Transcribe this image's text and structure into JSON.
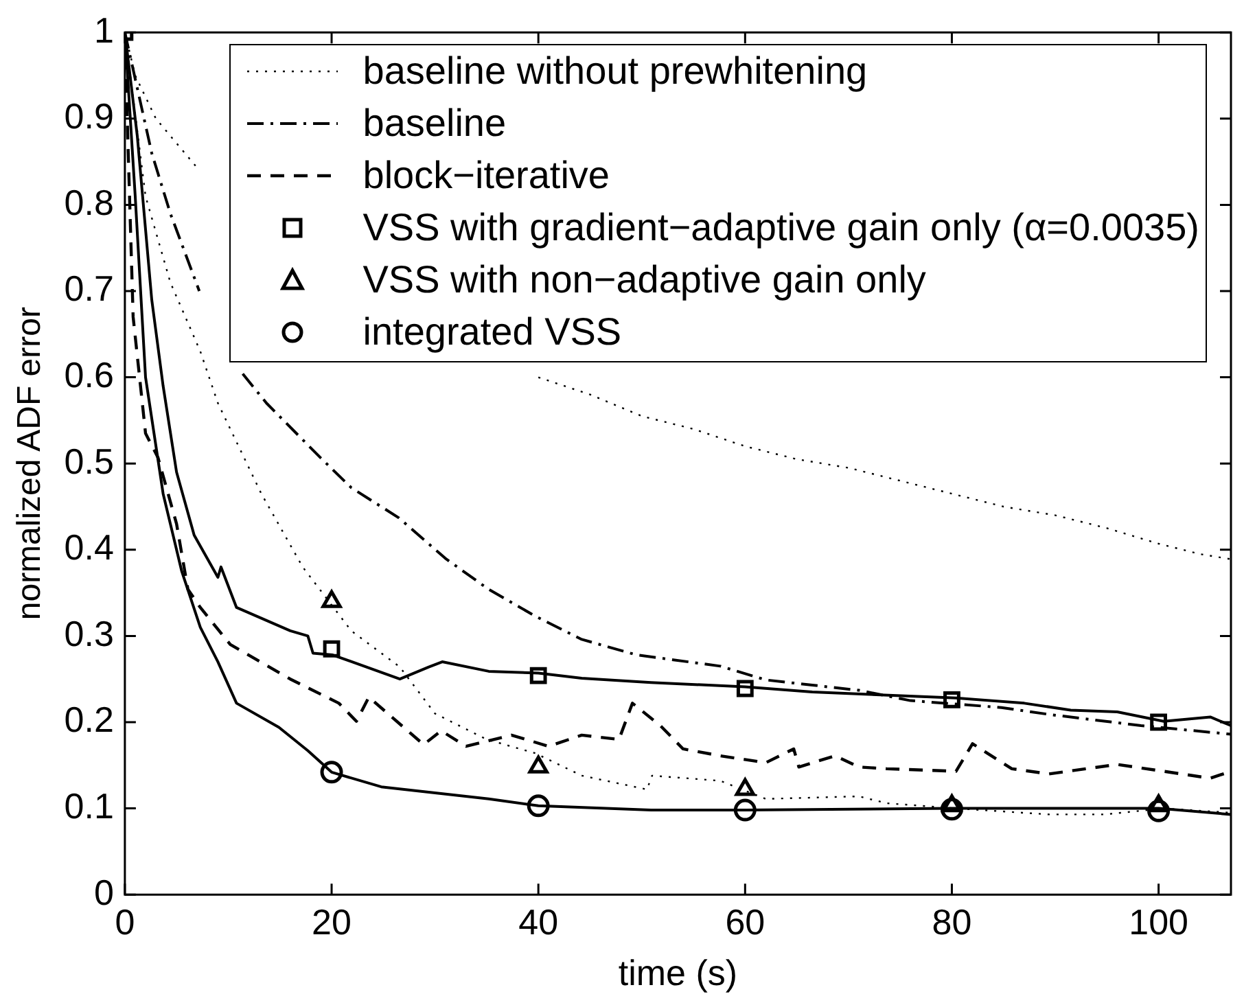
{
  "chart_data": {
    "type": "line",
    "xlabel": "time (s)",
    "ylabel": "normalized ADF error",
    "xlim": [
      0,
      107
    ],
    "ylim": [
      0,
      1
    ],
    "xticks": [
      0,
      20,
      40,
      60,
      80,
      100
    ],
    "yticks": [
      0,
      0.1,
      0.2,
      0.3,
      0.4,
      0.5,
      0.6,
      0.7,
      0.8,
      0.9,
      1
    ],
    "grid": false,
    "legend": "top right",
    "series": [
      {
        "name": "baseline without prewhitening",
        "line_style": "dotted",
        "color": "#000000",
        "x": [
          0,
          1,
          3,
          7.2,
          20,
          40,
          45,
          50,
          55,
          60,
          65,
          70,
          75,
          80,
          85,
          90,
          95,
          100,
          104,
          107
        ],
        "values": [
          1,
          0.95,
          0.9,
          0.84,
          null,
          0.6,
          0.58,
          0.555,
          0.54,
          0.52,
          0.505,
          0.495,
          0.48,
          0.465,
          0.45,
          0.44,
          0.425,
          0.407,
          0.395,
          0.389
        ]
      },
      {
        "name": "baseline",
        "line_style": "dashdot",
        "color": "#000000",
        "x": [
          0,
          2.6,
          4.4,
          7.2,
          9,
          11.4,
          13.7,
          18.9,
          21.9,
          26.5,
          31,
          35.2,
          39.7,
          44.2,
          49.5,
          57.6,
          62,
          66.5,
          71,
          76,
          84.8,
          89.4,
          98.3,
          107
        ],
        "values": [
          1,
          0.86,
          0.79,
          0.7,
          null,
          0.604,
          0.57,
          0.507,
          0.472,
          0.437,
          0.39,
          0.354,
          0.323,
          0.296,
          0.278,
          0.265,
          0.249,
          0.243,
          0.237,
          0.225,
          0.217,
          0.209,
          0.196,
          0.186
        ]
      },
      {
        "name": "block−iterative",
        "line_style": "dashed",
        "color": "#000000",
        "x": [
          0,
          0.3,
          0.8,
          2,
          3.2,
          5,
          6.1,
          7.3,
          10.2,
          16,
          20.7,
          22.4,
          23.6,
          28.9,
          30.6,
          33,
          37.4,
          41,
          44.2,
          47.8,
          49.1,
          51.8,
          54,
          57.6,
          62,
          64.7,
          65.2,
          68.7,
          71,
          73.7,
          80.4,
          82,
          85.8,
          89.4,
          96,
          100.5,
          105,
          107
        ],
        "values": [
          1,
          0.87,
          0.67,
          0.535,
          0.507,
          0.43,
          0.354,
          0.333,
          0.29,
          0.25,
          0.222,
          0.201,
          0.229,
          0.174,
          0.19,
          0.172,
          0.185,
          0.172,
          0.185,
          0.18,
          0.222,
          0.196,
          0.169,
          0.161,
          0.153,
          0.169,
          0.148,
          0.161,
          0.148,
          0.146,
          0.143,
          0.175,
          0.146,
          0.14,
          0.151,
          0.143,
          0.135,
          0.143
        ]
      },
      {
        "line_style": "solid",
        "color": "#000000",
        "x": [
          0,
          1.2,
          2.6,
          3.7,
          5,
          6.7,
          9,
          9.3,
          10.8,
          16,
          17.7,
          18.2,
          20.1,
          26.6,
          29.4,
          30.7,
          35.2,
          40,
          44.2,
          50.9,
          60,
          66.5,
          80.4,
          87,
          91.5,
          96,
          100.5,
          105,
          107
        ],
        "values": [
          1,
          0.88,
          0.69,
          0.59,
          0.49,
          0.417,
          0.368,
          0.38,
          0.333,
          0.306,
          0.3,
          0.28,
          0.278,
          0.25,
          0.264,
          0.27,
          0.259,
          0.257,
          0.251,
          0.246,
          0.241,
          0.235,
          0.228,
          0.222,
          0.214,
          0.212,
          0.201,
          0.206,
          0.196
        ]
      },
      {
        "line_style": "dotted",
        "color": "#000000",
        "x": [
          0,
          2,
          4.4,
          7.3,
          9,
          13.2,
          17.2,
          21.9,
          26.6,
          30,
          35,
          39.7,
          44.2,
          50.5,
          51,
          57.6,
          62,
          71,
          73.7,
          80.4,
          89.4,
          94.8,
          100.5,
          107
        ],
        "values": [
          1,
          0.81,
          0.71,
          0.63,
          0.57,
          0.465,
          0.38,
          0.306,
          0.264,
          0.21,
          0.18,
          0.164,
          0.138,
          0.122,
          0.138,
          0.132,
          0.111,
          0.114,
          0.106,
          0.1,
          0.093,
          0.093,
          0.1,
          0.095
        ]
      },
      {
        "line_style": "solid",
        "color": "#000000",
        "x": [
          0,
          1,
          2,
          3.7,
          5.5,
          7.3,
          9,
          10.8,
          14.9,
          17.7,
          20,
          24.8,
          30,
          35.2,
          40,
          50.9,
          60,
          80,
          100,
          107
        ],
        "values": [
          1,
          0.81,
          0.6,
          0.465,
          0.375,
          0.31,
          0.27,
          0.222,
          0.194,
          0.167,
          0.142,
          0.125,
          0.118,
          0.111,
          0.103,
          0.098,
          0.098,
          0.1,
          0.1,
          0.093
        ]
      },
      {
        "name": "VSS with gradient−adaptive gain only (α=0.0035)",
        "type": "scatter",
        "marker": "square",
        "color": "#000000",
        "x": [
          0,
          20,
          40,
          60,
          80,
          100
        ],
        "values": [
          1,
          0.285,
          0.254,
          0.239,
          0.226,
          0.2
        ]
      },
      {
        "name": "VSS with non−adaptive gain only",
        "type": "scatter",
        "marker": "triangle",
        "color": "#000000",
        "x": [
          20,
          40,
          60,
          80,
          100
        ],
        "values": [
          0.34,
          0.148,
          0.122,
          0.103,
          0.103
        ]
      },
      {
        "name": "integrated VSS",
        "type": "scatter",
        "marker": "circle",
        "color": "#000000",
        "x": [
          20,
          40,
          60,
          80,
          100
        ],
        "values": [
          0.142,
          0.103,
          0.098,
          0.099,
          0.097
        ]
      }
    ]
  }
}
